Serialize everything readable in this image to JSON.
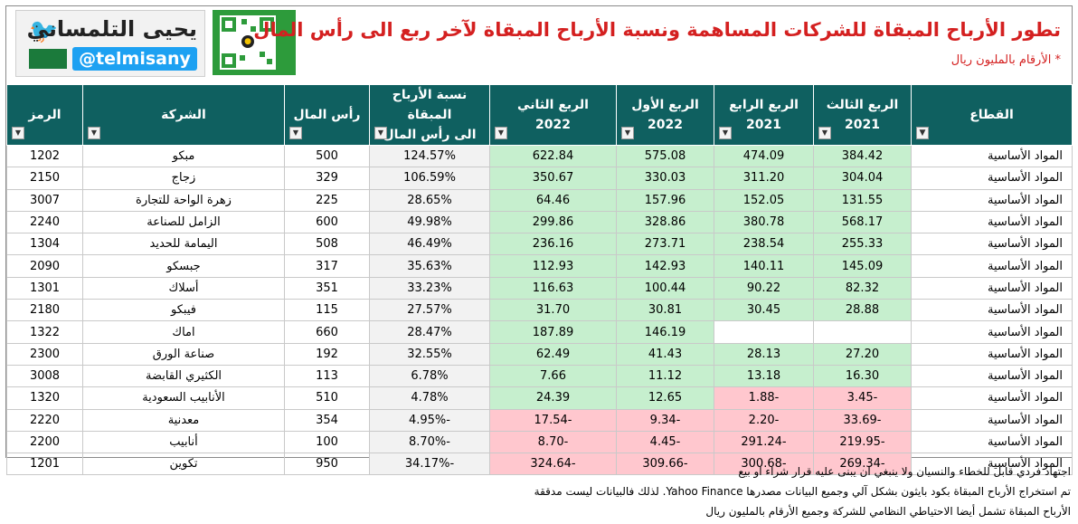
{
  "header": {
    "title": "تطور الأرباح المبقاة للشركات المساهمة ونسبة الأرباح المبقاة لآخر ربع الى رأس المال",
    "subtitle": "* الأرقام بالمليون ريال",
    "author_name": "يحيى التلمساني",
    "author_handle": "@telmisany"
  },
  "columns": {
    "sector": "القطاع",
    "q3_2021": {
      "line1": "الربع الثالث",
      "line2": "2021"
    },
    "q4_2021": {
      "line1": "الربع الرابع",
      "line2": "2021"
    },
    "q1_2022": {
      "line1": "الربع الأول",
      "line2": "2022"
    },
    "q2_2022": {
      "line1": "الربع الثاني",
      "line2": "2022"
    },
    "ratio": {
      "line1": "نسبة الأرباح المبقاة",
      "line2": "الى رأس المال"
    },
    "capital": "رأس المال",
    "company": "الشركة",
    "symbol": "الرمز"
  },
  "rows": [
    {
      "sector": "المواد الأساسية",
      "q3_2021": "384.42",
      "q4_2021": "474.09",
      "q1_2022": "575.08",
      "q2_2022": "622.84",
      "ratio": "124.57%",
      "capital": "500",
      "company": "مبكو",
      "symbol": "1202"
    },
    {
      "sector": "المواد الأساسية",
      "q3_2021": "304.04",
      "q4_2021": "311.20",
      "q1_2022": "330.03",
      "q2_2022": "350.67",
      "ratio": "106.59%",
      "capital": "329",
      "company": "زجاج",
      "symbol": "2150"
    },
    {
      "sector": "المواد الأساسية",
      "q3_2021": "131.55",
      "q4_2021": "152.05",
      "q1_2022": "157.96",
      "q2_2022": "64.46",
      "ratio": "28.65%",
      "capital": "225",
      "company": "زهرة الواحة للتجارة",
      "symbol": "3007"
    },
    {
      "sector": "المواد الأساسية",
      "q3_2021": "568.17",
      "q4_2021": "380.78",
      "q1_2022": "328.86",
      "q2_2022": "299.86",
      "ratio": "49.98%",
      "capital": "600",
      "company": "الزامل للصناعة",
      "symbol": "2240"
    },
    {
      "sector": "المواد الأساسية",
      "q3_2021": "255.33",
      "q4_2021": "238.54",
      "q1_2022": "273.71",
      "q2_2022": "236.16",
      "ratio": "46.49%",
      "capital": "508",
      "company": "اليمامة للحديد",
      "symbol": "1304"
    },
    {
      "sector": "المواد الأساسية",
      "q3_2021": "145.09",
      "q4_2021": "140.11",
      "q1_2022": "142.93",
      "q2_2022": "112.93",
      "ratio": "35.63%",
      "capital": "317",
      "company": "جبسكو",
      "symbol": "2090"
    },
    {
      "sector": "المواد الأساسية",
      "q3_2021": "82.32",
      "q4_2021": "90.22",
      "q1_2022": "100.44",
      "q2_2022": "116.63",
      "ratio": "33.23%",
      "capital": "351",
      "company": "أسلاك",
      "symbol": "1301"
    },
    {
      "sector": "المواد الأساسية",
      "q3_2021": "28.88",
      "q4_2021": "30.45",
      "q1_2022": "30.81",
      "q2_2022": "31.70",
      "ratio": "27.57%",
      "capital": "115",
      "company": "فيبكو",
      "symbol": "2180"
    },
    {
      "sector": "المواد الأساسية",
      "q3_2021": "",
      "q4_2021": "",
      "q1_2022": "146.19",
      "q2_2022": "187.89",
      "ratio": "28.47%",
      "capital": "660",
      "company": "اماك",
      "symbol": "1322"
    },
    {
      "sector": "المواد الأساسية",
      "q3_2021": "27.20",
      "q4_2021": "28.13",
      "q1_2022": "41.43",
      "q2_2022": "62.49",
      "ratio": "32.55%",
      "capital": "192",
      "company": "صناعة الورق",
      "symbol": "2300"
    },
    {
      "sector": "المواد الأساسية",
      "q3_2021": "16.30",
      "q4_2021": "13.18",
      "q1_2022": "11.12",
      "q2_2022": "7.66",
      "ratio": "6.78%",
      "capital": "113",
      "company": "الكثيري القابضة",
      "symbol": "3008"
    },
    {
      "sector": "المواد الأساسية",
      "q3_2021": "-3.45",
      "q4_2021": "-1.88",
      "q1_2022": "12.65",
      "q2_2022": "24.39",
      "ratio": "4.78%",
      "capital": "510",
      "company": "الأنابيب السعودية",
      "symbol": "1320"
    },
    {
      "sector": "المواد الأساسية",
      "q3_2021": "-33.69",
      "q4_2021": "-2.20",
      "q1_2022": "-9.34",
      "q2_2022": "-17.54",
      "ratio": "-4.95%",
      "capital": "354",
      "company": "معدنية",
      "symbol": "2220"
    },
    {
      "sector": "المواد الأساسية",
      "q3_2021": "-219.95",
      "q4_2021": "-291.24",
      "q1_2022": "-4.45",
      "q2_2022": "-8.70",
      "ratio": "-8.70%",
      "capital": "100",
      "company": "أنابيب",
      "symbol": "2200"
    },
    {
      "sector": "المواد الأساسية",
      "q3_2021": "-269.34",
      "q4_2021": "-300.68",
      "q1_2022": "-309.66",
      "q2_2022": "-324.64",
      "ratio": "-34.17%",
      "capital": "950",
      "company": "تكوين",
      "symbol": "1201"
    }
  ],
  "notes": [
    "اجتهاد فردي قابل للخطاء والنسيان ولا ينبغي ان يبنى عليه قرار شراء او بيع",
    "تم استخراج الأرباح المبقاة بكود بايثون بشكل آلي وجميع البيانات مصدرها Yahoo Finance. لذلك فالبيانات ليست مدققة",
    "الأرباح المبقاة تشمل أيضا الاحتياطي النظامي للشركة وجميع الأرقام بالمليون ريال"
  ],
  "colors": {
    "header_bg": "#0f6060",
    "positive_bg": "#c6efce",
    "negative_bg": "#ffc7ce",
    "title_color": "#d42020"
  },
  "icons": [
    "twitter-bird-icon",
    "qr-code-icon",
    "filter-dropdown-icon",
    "filter-active-icon"
  ]
}
